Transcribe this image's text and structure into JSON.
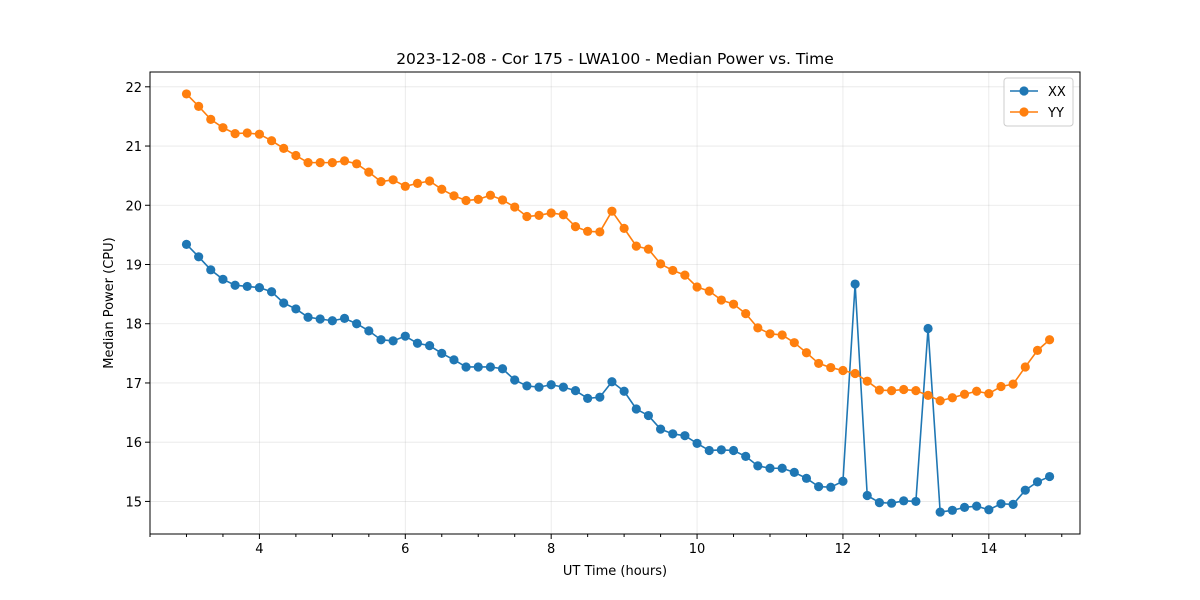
{
  "chart_data": {
    "type": "line",
    "title": "2023-12-08 - Cor 175 - LWA100 - Median Power vs. Time",
    "xlabel": "UT Time (hours)",
    "ylabel": "Median Power (CPU)",
    "xlim": [
      2.5,
      15.25
    ],
    "ylim": [
      14.45,
      22.25
    ],
    "x_ticks": [
      4,
      6,
      8,
      10,
      12,
      14
    ],
    "x_minor_ticks": [
      2.5,
      3,
      3.5,
      4.5,
      5,
      5.5,
      6.5,
      7,
      7.5,
      8.5,
      9,
      9.5,
      10.5,
      11,
      11.5,
      12.5,
      13,
      13.5,
      14.5,
      15
    ],
    "y_ticks": [
      15,
      16,
      17,
      18,
      19,
      20,
      21,
      22
    ],
    "grid": true,
    "legend_position": "top-right",
    "x": [
      3.0,
      3.167,
      3.333,
      3.5,
      3.667,
      3.833,
      4.0,
      4.167,
      4.333,
      4.5,
      4.667,
      4.833,
      5.0,
      5.167,
      5.333,
      5.5,
      5.667,
      5.833,
      6.0,
      6.167,
      6.333,
      6.5,
      6.667,
      6.833,
      7.0,
      7.167,
      7.333,
      7.5,
      7.667,
      7.833,
      8.0,
      8.167,
      8.333,
      8.5,
      8.667,
      8.833,
      9.0,
      9.167,
      9.333,
      9.5,
      9.667,
      9.833,
      10.0,
      10.167,
      10.333,
      10.5,
      10.667,
      10.833,
      11.0,
      11.167,
      11.333,
      11.5,
      11.667,
      11.833,
      12.0,
      12.167,
      12.333,
      12.5,
      12.667,
      12.833,
      13.0,
      13.167,
      13.333,
      13.5,
      13.667,
      13.833,
      14.0,
      14.167,
      14.333,
      14.5,
      14.667,
      14.833
    ],
    "series": [
      {
        "name": "XX",
        "color": "#1f77b4",
        "values": [
          19.34,
          19.13,
          18.91,
          18.75,
          18.65,
          18.63,
          18.61,
          18.54,
          18.35,
          18.25,
          18.11,
          18.08,
          18.05,
          18.09,
          18.0,
          17.88,
          17.73,
          17.71,
          17.79,
          17.67,
          17.63,
          17.5,
          17.39,
          17.27,
          17.27,
          17.27,
          17.24,
          17.05,
          16.95,
          16.93,
          16.97,
          16.93,
          16.87,
          16.74,
          16.76,
          17.02,
          16.86,
          16.56,
          16.45,
          16.22,
          16.14,
          16.11,
          15.98,
          15.86,
          15.87,
          15.86,
          15.76,
          15.6,
          15.56,
          15.56,
          15.49,
          15.39,
          15.25,
          15.24,
          15.34,
          18.67,
          15.1,
          14.98,
          14.97,
          15.01,
          15.0,
          17.92,
          14.82,
          14.85,
          14.9,
          14.92,
          14.86,
          14.96,
          14.95,
          15.19,
          15.33,
          15.42
        ]
      },
      {
        "name": "YY",
        "color": "#ff7f0e",
        "values": [
          21.88,
          21.67,
          21.45,
          21.31,
          21.21,
          21.22,
          21.2,
          21.09,
          20.96,
          20.84,
          20.72,
          20.72,
          20.72,
          20.75,
          20.7,
          20.56,
          20.4,
          20.43,
          20.32,
          20.37,
          20.41,
          20.27,
          20.16,
          20.08,
          20.1,
          20.17,
          20.09,
          19.97,
          19.81,
          19.83,
          19.87,
          19.84,
          19.64,
          19.56,
          19.55,
          19.9,
          19.61,
          19.31,
          19.26,
          19.01,
          18.9,
          18.82,
          18.62,
          18.55,
          18.4,
          18.33,
          18.17,
          17.93,
          17.83,
          17.81,
          17.68,
          17.51,
          17.33,
          17.26,
          17.21,
          17.16,
          17.03,
          16.88,
          16.87,
          16.89,
          16.87,
          16.79,
          16.7,
          16.75,
          16.81,
          16.86,
          16.82,
          16.94,
          16.98,
          17.27,
          17.55,
          17.73
        ]
      }
    ]
  }
}
